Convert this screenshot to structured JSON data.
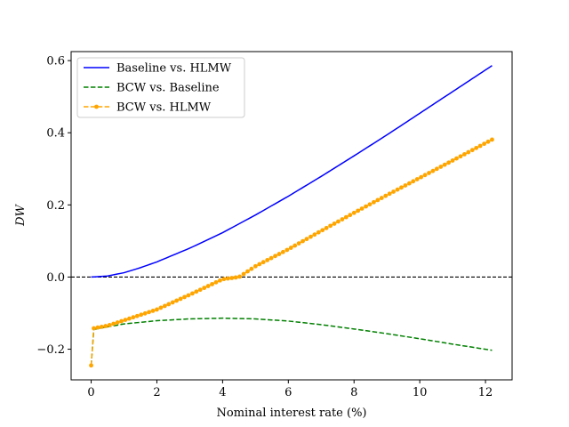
{
  "chart_data": {
    "type": "line",
    "title": "",
    "xlabel": "Nominal interest rate (%)",
    "ylabel": "DW",
    "xlim": [
      -0.61,
      12.81
    ],
    "ylim": [
      -0.285,
      0.625
    ],
    "xticks": [
      0,
      2,
      4,
      6,
      8,
      10,
      12
    ],
    "xtick_labels": [
      "0",
      "2",
      "4",
      "6",
      "8",
      "10",
      "12"
    ],
    "yticks": [
      -0.2,
      0.0,
      0.2,
      0.4,
      0.6
    ],
    "ytick_labels": [
      "−0.2",
      "0.0",
      "0.2",
      "0.4",
      "0.6"
    ],
    "grid": false,
    "legend_position": "top-left",
    "reference_line": {
      "y": 0,
      "style": "dashed",
      "color": "#000000"
    },
    "series": [
      {
        "name": "Baseline vs. HLMW",
        "color": "#0000ff",
        "style": "solid",
        "marker": "none",
        "x": [
          0,
          0.5,
          1,
          1.5,
          2,
          3,
          4,
          5,
          6,
          7,
          8,
          9,
          10,
          11,
          12.2
        ],
        "y": [
          0.0,
          0.003,
          0.012,
          0.026,
          0.042,
          0.08,
          0.123,
          0.172,
          0.224,
          0.279,
          0.336,
          0.394,
          0.454,
          0.514,
          0.586
        ]
      },
      {
        "name": "BCW vs. Baseline",
        "color": "#008000",
        "style": "dashed",
        "marker": "none",
        "x": [
          0,
          0.08,
          0.5,
          1,
          2,
          3,
          4,
          5,
          6,
          7,
          8,
          9,
          10,
          11,
          12.2
        ],
        "y": [
          -0.245,
          -0.145,
          -0.138,
          -0.13,
          -0.121,
          -0.116,
          -0.114,
          -0.116,
          -0.122,
          -0.132,
          -0.144,
          -0.157,
          -0.171,
          -0.186,
          -0.203
        ]
      },
      {
        "name": "BCW vs. HLMW",
        "color": "#ffa500",
        "style": "dashed",
        "marker": "circle",
        "x": [
          0,
          0.08,
          0.5,
          1,
          2,
          3,
          4,
          4.5,
          5,
          6,
          7,
          8,
          9,
          10,
          11,
          12.2
        ],
        "y": [
          -0.245,
          -0.142,
          -0.135,
          -0.12,
          -0.09,
          -0.049,
          -0.006,
          0.0,
          0.03,
          0.077,
          0.128,
          0.178,
          0.227,
          0.275,
          0.323,
          0.381
        ]
      }
    ]
  }
}
